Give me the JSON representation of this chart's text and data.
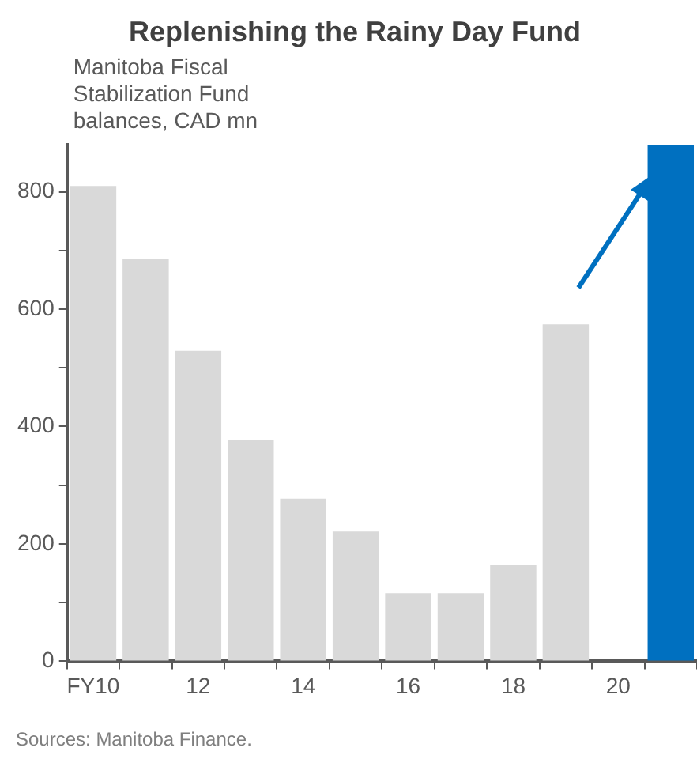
{
  "chart_data": {
    "type": "bar",
    "title": "Replenishing the Rainy Day Fund",
    "ylabel": "Manitoba Fiscal Stabilization Fund balances, CAD mn",
    "categories": [
      "FY10",
      null,
      "12",
      null,
      "14",
      null,
      "16",
      null,
      "18",
      null,
      "20",
      null
    ],
    "values": [
      810,
      685,
      529,
      377,
      277,
      221,
      116,
      116,
      165,
      574,
      null,
      880
    ],
    "colors": [
      "#d9d9d9",
      "#d9d9d9",
      "#d9d9d9",
      "#d9d9d9",
      "#d9d9d9",
      "#d9d9d9",
      "#d9d9d9",
      "#d9d9d9",
      "#d9d9d9",
      "#d9d9d9",
      "#d9d9d9",
      "#0070c0"
    ],
    "ylim": [
      0,
      880
    ],
    "yticks": [
      0,
      {
        "value": 100,
        "label": null
      },
      200,
      {
        "value": 300,
        "label": null
      },
      400,
      {
        "value": 500,
        "label": null
      },
      600,
      {
        "value": 700,
        "label": null
      },
      800
    ],
    "grid": false,
    "legend": false,
    "annotations": [
      "Sources: Manitoba Finance."
    ]
  }
}
